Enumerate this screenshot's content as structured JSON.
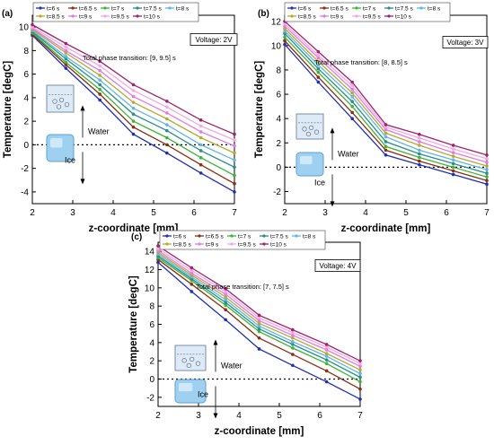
{
  "series_styles": [
    {
      "name": "t=6 s",
      "color": "#1f2fb5"
    },
    {
      "name": "t=6.5 s",
      "color": "#8a2f12"
    },
    {
      "name": "t=7 s",
      "color": "#3cb534"
    },
    {
      "name": "t=7.5 s",
      "color": "#2a8c8c"
    },
    {
      "name": "t=8 s",
      "color": "#5fb6e6"
    },
    {
      "name": "t=8.5 s",
      "color": "#b8a92e"
    },
    {
      "name": "t=9 s",
      "color": "#e27be0"
    },
    {
      "name": "t=9.5 s",
      "color": "#f2a8e6"
    },
    {
      "name": "t=10 s",
      "color": "#a0236a"
    }
  ],
  "labels": {
    "water": "Water",
    "ice": "Ice"
  },
  "chart_data": [
    {
      "type": "line",
      "panel": "(a)",
      "voltage": "Voltage: 2V",
      "transition": "Total phase transition: [9, 9.5] s",
      "xlabel": "z-coordinate [mm]",
      "ylabel": "Temperature [degC]",
      "xlim": [
        2,
        7
      ],
      "ylim": [
        -5,
        11
      ],
      "xticks": [
        2,
        3,
        4,
        5,
        6,
        7
      ],
      "yticks": [
        -4,
        -2,
        0,
        2,
        4,
        6,
        8,
        10
      ],
      "x": [
        2,
        2.83,
        3.67,
        4.5,
        5.33,
        6.17,
        7
      ],
      "series": [
        {
          "name": "t=6 s",
          "values": [
            9.3,
            6.5,
            3.8,
            0.9,
            -0.7,
            -2.4,
            -4.0
          ]
        },
        {
          "name": "t=6.5 s",
          "values": [
            9.4,
            6.8,
            4.3,
            1.5,
            0.0,
            -1.7,
            -3.3
          ]
        },
        {
          "name": "t=7 s",
          "values": [
            9.5,
            7.0,
            4.7,
            2.0,
            0.6,
            -1.1,
            -2.6
          ]
        },
        {
          "name": "t=7.5 s",
          "values": [
            9.6,
            7.3,
            5.1,
            2.6,
            1.2,
            -0.5,
            -1.9
          ]
        },
        {
          "name": "t=8 s",
          "values": [
            9.7,
            7.5,
            5.5,
            3.1,
            1.7,
            0.0,
            -1.3
          ]
        },
        {
          "name": "t=8.5 s",
          "values": [
            9.8,
            7.8,
            5.9,
            3.6,
            2.2,
            0.6,
            -0.7
          ]
        },
        {
          "name": "t=9 s",
          "values": [
            9.9,
            8.0,
            6.3,
            4.1,
            2.7,
            1.1,
            -0.1
          ]
        },
        {
          "name": "t=9.5 s",
          "values": [
            10.0,
            8.3,
            6.7,
            4.6,
            3.2,
            1.6,
            0.4
          ]
        },
        {
          "name": "t=10 s",
          "values": [
            10.2,
            8.6,
            7.1,
            5.1,
            3.7,
            2.1,
            0.9
          ]
        }
      ]
    },
    {
      "type": "line",
      "panel": "(b)",
      "voltage": "Voltage: 3V",
      "transition": "Total phase transition: [8, 8.5] s",
      "xlabel": "z-coordinate [mm]",
      "ylabel": "Temperature [degC]",
      "xlim": [
        2,
        7
      ],
      "ylim": [
        -3,
        12.5
      ],
      "xticks": [
        2,
        3,
        4,
        5,
        6,
        7
      ],
      "yticks": [
        -2,
        0,
        2,
        4,
        6,
        8,
        10,
        12
      ],
      "x": [
        2,
        2.83,
        3.67,
        4.5,
        5.33,
        6.17,
        7
      ],
      "series": [
        {
          "name": "t=6 s",
          "values": [
            10.1,
            7.0,
            4.0,
            1.0,
            0.2,
            -0.6,
            -1.4
          ]
        },
        {
          "name": "t=6.5 s",
          "values": [
            10.4,
            7.4,
            4.5,
            1.4,
            0.5,
            -0.3,
            -1.1
          ]
        },
        {
          "name": "t=7 s",
          "values": [
            10.7,
            7.8,
            5.0,
            1.7,
            0.8,
            0.0,
            -0.8
          ]
        },
        {
          "name": "t=7.5 s",
          "values": [
            11.0,
            8.1,
            5.4,
            2.1,
            1.1,
            0.3,
            -0.5
          ]
        },
        {
          "name": "t=8 s",
          "values": [
            11.2,
            8.4,
            5.8,
            2.5,
            1.4,
            0.6,
            -0.2
          ]
        },
        {
          "name": "t=8.5 s",
          "values": [
            11.4,
            8.7,
            6.1,
            2.8,
            1.8,
            0.9,
            0.1
          ]
        },
        {
          "name": "t=9 s",
          "values": [
            11.6,
            9.0,
            6.4,
            3.1,
            2.1,
            1.2,
            0.4
          ]
        },
        {
          "name": "t=9.5 s",
          "values": [
            11.8,
            9.2,
            6.7,
            3.3,
            2.4,
            1.5,
            0.7
          ]
        },
        {
          "name": "t=10 s",
          "values": [
            12.0,
            9.5,
            7.0,
            3.5,
            2.7,
            1.8,
            1.0
          ]
        }
      ]
    },
    {
      "type": "line",
      "panel": "(c)",
      "voltage": "Voltage: 4V",
      "transition": "Total phase transition: [7, 7.5] s",
      "xlabel": "z-coordinate [mm]",
      "ylabel": "Temperature [degC]",
      "xlim": [
        2,
        7
      ],
      "ylim": [
        -3,
        15
      ],
      "xticks": [
        2,
        3,
        4,
        5,
        6,
        7
      ],
      "yticks": [
        -2,
        0,
        2,
        4,
        6,
        8,
        10,
        12,
        14
      ],
      "x": [
        2,
        2.83,
        3.67,
        4.5,
        5.33,
        6.17,
        7
      ],
      "series": [
        {
          "name": "t=6 s",
          "values": [
            12.8,
            9.6,
            6.5,
            3.3,
            1.5,
            -0.3,
            -2.2
          ]
        },
        {
          "name": "t=6.5 s",
          "values": [
            13.1,
            10.4,
            7.6,
            4.5,
            2.7,
            0.9,
            -1.1
          ]
        },
        {
          "name": "t=7 s",
          "values": [
            13.3,
            10.8,
            8.1,
            5.2,
            3.4,
            1.7,
            -0.3
          ]
        },
        {
          "name": "t=7.5 s",
          "values": [
            13.5,
            11.0,
            8.4,
            5.5,
            3.8,
            2.1,
            0.2
          ]
        },
        {
          "name": "t=8 s",
          "values": [
            13.7,
            11.2,
            8.7,
            5.8,
            4.1,
            2.5,
            0.6
          ]
        },
        {
          "name": "t=8.5 s",
          "values": [
            13.9,
            11.4,
            9.0,
            6.1,
            4.5,
            2.8,
            1.0
          ]
        },
        {
          "name": "t=9 s",
          "values": [
            14.1,
            11.6,
            9.3,
            6.4,
            4.8,
            3.2,
            1.4
          ]
        },
        {
          "name": "t=9.5 s",
          "values": [
            14.3,
            11.9,
            9.6,
            6.7,
            5.1,
            3.5,
            1.7
          ]
        },
        {
          "name": "t=10 s",
          "values": [
            14.6,
            12.2,
            9.9,
            7.0,
            5.4,
            3.8,
            2.0
          ]
        }
      ]
    }
  ]
}
